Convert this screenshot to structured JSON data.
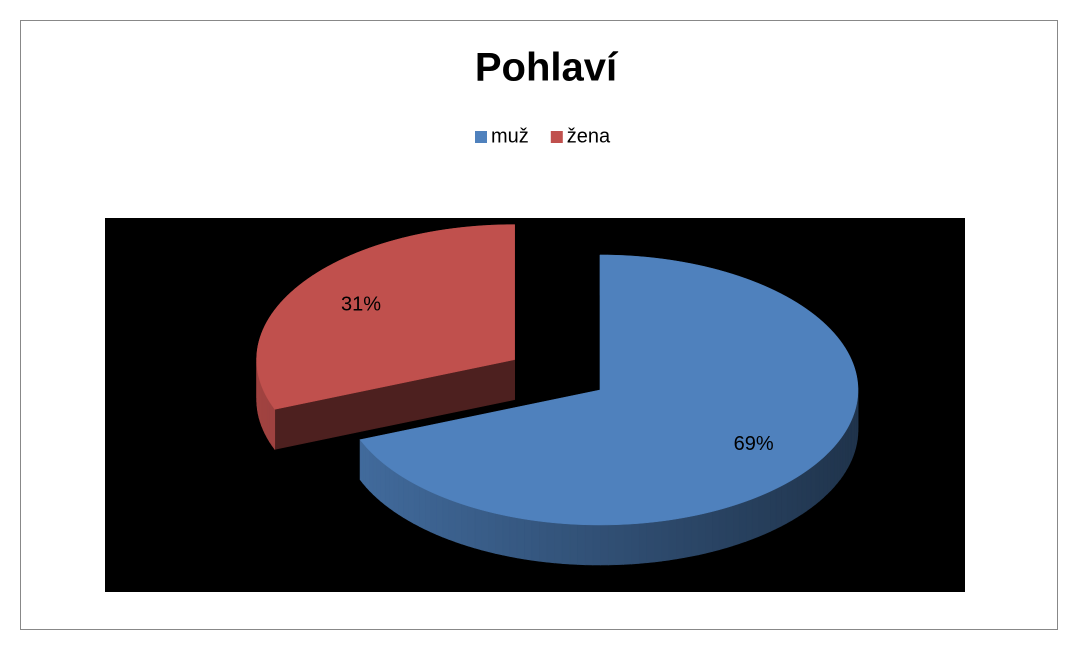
{
  "chart_data": {
    "type": "pie",
    "title": "Pohlaví",
    "categories": [
      "muž",
      "žena"
    ],
    "values": [
      69,
      31
    ],
    "value_labels": [
      "69%",
      "31%"
    ],
    "colors": [
      "#4f81bd",
      "#c0504d"
    ],
    "legend": "top",
    "exploded": [
      false,
      true
    ]
  }
}
